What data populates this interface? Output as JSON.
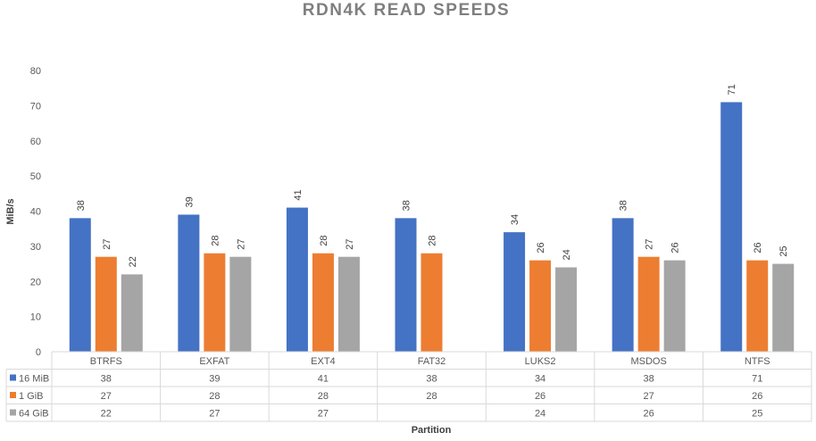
{
  "chart_data": {
    "type": "bar",
    "title": "RDN4K READ SPEEDS",
    "xlabel": "Partition",
    "ylabel": "MiB/s",
    "ylim": [
      0,
      80
    ],
    "yticks": [
      0,
      10,
      20,
      30,
      40,
      50,
      60,
      70,
      80
    ],
    "grid": false,
    "legend": "data-table-left",
    "categories": [
      "BTRFS",
      "EXFAT",
      "EXT4",
      "FAT32",
      "LUKS2",
      "MSDOS",
      "NTFS"
    ],
    "series": [
      {
        "name": "16 MiB",
        "color": "#4472c4",
        "values": [
          38,
          39,
          41,
          38,
          34,
          38,
          71
        ]
      },
      {
        "name": "1 GiB",
        "color": "#ed7d31",
        "values": [
          27,
          28,
          28,
          28,
          26,
          27,
          26
        ]
      },
      {
        "name": "64 GiB",
        "color": "#a5a5a5",
        "values": [
          22,
          27,
          27,
          null,
          24,
          26,
          25
        ]
      }
    ]
  }
}
